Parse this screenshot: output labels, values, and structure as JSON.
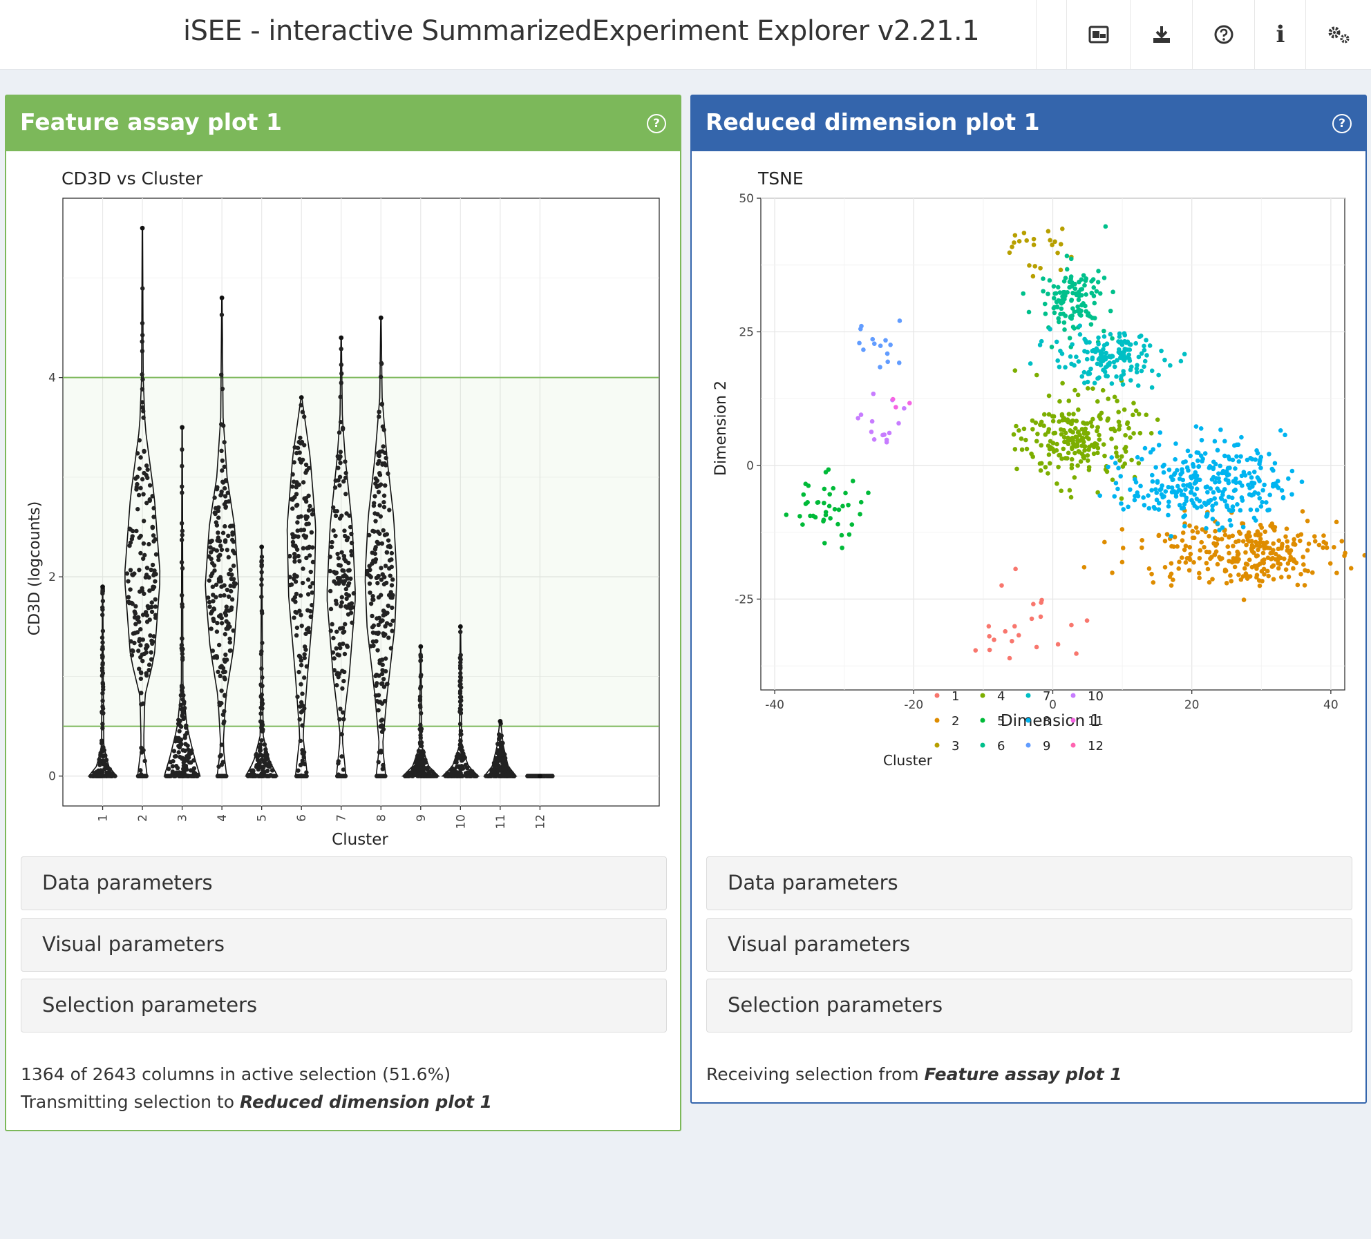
{
  "app": {
    "title": "iSEE - interactive SummarizedExperiment Explorer v2.21.1"
  },
  "header_buttons": [
    {
      "name": "export-image-icon"
    },
    {
      "name": "download-icon"
    },
    {
      "name": "help-icon"
    },
    {
      "name": "info-icon",
      "glyph": "i"
    },
    {
      "name": "settings-icon"
    }
  ],
  "panels": [
    {
      "title": "Feature assay plot 1",
      "color": "#7cb85a",
      "sections": [
        "Data parameters",
        "Visual parameters",
        "Selection parameters"
      ],
      "status": "1364 of 2643 columns in active selection (51.6%)",
      "transmit_prefix": "Transmitting selection to ",
      "transmit_target": "Reduced dimension plot 1"
    },
    {
      "title": "Reduced dimension plot 1",
      "color": "#3465ac",
      "sections": [
        "Data parameters",
        "Visual parameters",
        "Selection parameters"
      ],
      "receive_prefix": "Receiving selection from ",
      "receive_source": "Feature assay plot 1"
    }
  ],
  "chart_data": [
    {
      "type": "violin",
      "title": "CD3D vs Cluster",
      "xlabel": "Cluster",
      "ylabel": "CD3D (logcounts)",
      "categories": [
        "1",
        "2",
        "3",
        "4",
        "5",
        "6",
        "7",
        "8",
        "9",
        "10",
        "11",
        "12"
      ],
      "yticks": [
        0,
        2,
        4
      ],
      "ylim": [
        -0.3,
        5.8
      ],
      "selection_range": [
        0.5,
        4
      ],
      "selection_color": "#7cb85a",
      "violins": [
        {
          "cluster": "1",
          "max": 1.9,
          "shape": [
            [
              0,
              0.35
            ],
            [
              0.1,
              0.15
            ],
            [
              0.3,
              0.03
            ],
            [
              1.0,
              0.015
            ],
            [
              1.9,
              0.005
            ]
          ]
        },
        {
          "cluster": "2",
          "max": 5.5,
          "shape": [
            [
              0,
              0.12
            ],
            [
              0.3,
              0.03
            ],
            [
              0.8,
              0.06
            ],
            [
              1.2,
              0.3
            ],
            [
              2.0,
              0.45
            ],
            [
              2.8,
              0.3
            ],
            [
              3.5,
              0.07
            ],
            [
              4.0,
              0.02
            ],
            [
              5.5,
              0.005
            ]
          ]
        },
        {
          "cluster": "3",
          "max": 3.5,
          "shape": [
            [
              0,
              0.45
            ],
            [
              0.2,
              0.3
            ],
            [
              0.5,
              0.12
            ],
            [
              0.9,
              0.02
            ],
            [
              3.5,
              0.005
            ]
          ]
        },
        {
          "cluster": "4",
          "max": 4.8,
          "shape": [
            [
              0,
              0.12
            ],
            [
              0.3,
              0.03
            ],
            [
              0.8,
              0.1
            ],
            [
              1.3,
              0.3
            ],
            [
              1.9,
              0.42
            ],
            [
              2.5,
              0.32
            ],
            [
              3.0,
              0.13
            ],
            [
              3.6,
              0.03
            ],
            [
              4.8,
              0.005
            ]
          ]
        },
        {
          "cluster": "5",
          "max": 2.3,
          "shape": [
            [
              0,
              0.4
            ],
            [
              0.15,
              0.2
            ],
            [
              0.4,
              0.04
            ],
            [
              1.0,
              0.02
            ],
            [
              2.3,
              0.005
            ]
          ]
        },
        {
          "cluster": "6",
          "max": 3.8,
          "shape": [
            [
              0,
              0.15
            ],
            [
              0.4,
              0.04
            ],
            [
              1.0,
              0.15
            ],
            [
              1.8,
              0.32
            ],
            [
              2.5,
              0.36
            ],
            [
              3.2,
              0.22
            ],
            [
              3.8,
              0.01
            ]
          ]
        },
        {
          "cluster": "7",
          "max": 4.4,
          "shape": [
            [
              0,
              0.12
            ],
            [
              0.4,
              0.02
            ],
            [
              1.0,
              0.2
            ],
            [
              1.8,
              0.36
            ],
            [
              2.5,
              0.28
            ],
            [
              3.2,
              0.1
            ],
            [
              3.6,
              0.03
            ],
            [
              4.4,
              0.005
            ]
          ]
        },
        {
          "cluster": "8",
          "max": 4.6,
          "shape": [
            [
              0,
              0.12
            ],
            [
              0.3,
              0.04
            ],
            [
              0.8,
              0.15
            ],
            [
              1.5,
              0.35
            ],
            [
              2.0,
              0.4
            ],
            [
              2.6,
              0.32
            ],
            [
              3.2,
              0.15
            ],
            [
              3.8,
              0.03
            ],
            [
              4.6,
              0.005
            ]
          ]
        },
        {
          "cluster": "9",
          "max": 1.3,
          "shape": [
            [
              0,
              0.45
            ],
            [
              0.1,
              0.2
            ],
            [
              0.3,
              0.03
            ],
            [
              1.3,
              0.005
            ]
          ]
        },
        {
          "cluster": "10",
          "max": 1.5,
          "shape": [
            [
              0,
              0.45
            ],
            [
              0.1,
              0.2
            ],
            [
              0.3,
              0.03
            ],
            [
              1.5,
              0.005
            ]
          ]
        },
        {
          "cluster": "11",
          "max": 0.55,
          "shape": [
            [
              0,
              0.4
            ],
            [
              0.1,
              0.2
            ],
            [
              0.3,
              0.08
            ],
            [
              0.55,
              0.01
            ]
          ]
        },
        {
          "cluster": "12",
          "max": 0.0,
          "shape": [
            [
              0,
              0.35
            ]
          ]
        }
      ]
    },
    {
      "type": "scatter",
      "title": "TSNE",
      "xlabel": "Dimension 1",
      "ylabel": "Dimension 2",
      "xlim": [
        -42,
        42
      ],
      "ylim": [
        -42,
        50
      ],
      "xticks": [
        -40,
        -20,
        0,
        20,
        40
      ],
      "yticks": [
        -25,
        0,
        25,
        50
      ],
      "legend_title": "Cluster",
      "legend_position": "bottom",
      "series": [
        {
          "name": "1",
          "color": "#f8766d",
          "center": [
            -5,
            -29
          ],
          "spread": [
            6,
            5
          ],
          "n": 22
        },
        {
          "name": "2",
          "color": "#de8c00",
          "center": [
            27,
            -16
          ],
          "spread": [
            9,
            4
          ],
          "n": 280
        },
        {
          "name": "3",
          "color": "#b79f00",
          "center": [
            -2,
            40
          ],
          "spread": [
            3,
            4
          ],
          "n": 22
        },
        {
          "name": "4",
          "color": "#7cae00",
          "center": [
            4,
            5
          ],
          "spread": [
            5,
            5
          ],
          "n": 230
        },
        {
          "name": "5",
          "color": "#00ba38",
          "center": [
            -33,
            -8
          ],
          "spread": [
            4,
            4
          ],
          "n": 40
        },
        {
          "name": "6",
          "color": "#00c08b",
          "center": [
            3,
            31
          ],
          "spread": [
            3,
            4
          ],
          "n": 120
        },
        {
          "name": "7",
          "color": "#00bfc4",
          "center": [
            8,
            20
          ],
          "spread": [
            5,
            3
          ],
          "n": 150
        },
        {
          "name": "8",
          "color": "#00b4f0",
          "center": [
            22,
            -3
          ],
          "spread": [
            7,
            5
          ],
          "n": 300
        },
        {
          "name": "9",
          "color": "#619cff",
          "center": [
            -24,
            22
          ],
          "spread": [
            3,
            3
          ],
          "n": 14
        },
        {
          "name": "10",
          "color": "#c77cff",
          "center": [
            -24,
            8
          ],
          "spread": [
            3,
            3
          ],
          "n": 14
        },
        {
          "name": "11",
          "color": "#f564e3",
          "center": [
            -22,
            12
          ],
          "spread": [
            1,
            1
          ],
          "n": 3
        },
        {
          "name": "12",
          "color": "#ff64b0",
          "center": [
            0,
            0
          ],
          "spread": [
            0,
            0
          ],
          "n": 0
        }
      ]
    }
  ]
}
